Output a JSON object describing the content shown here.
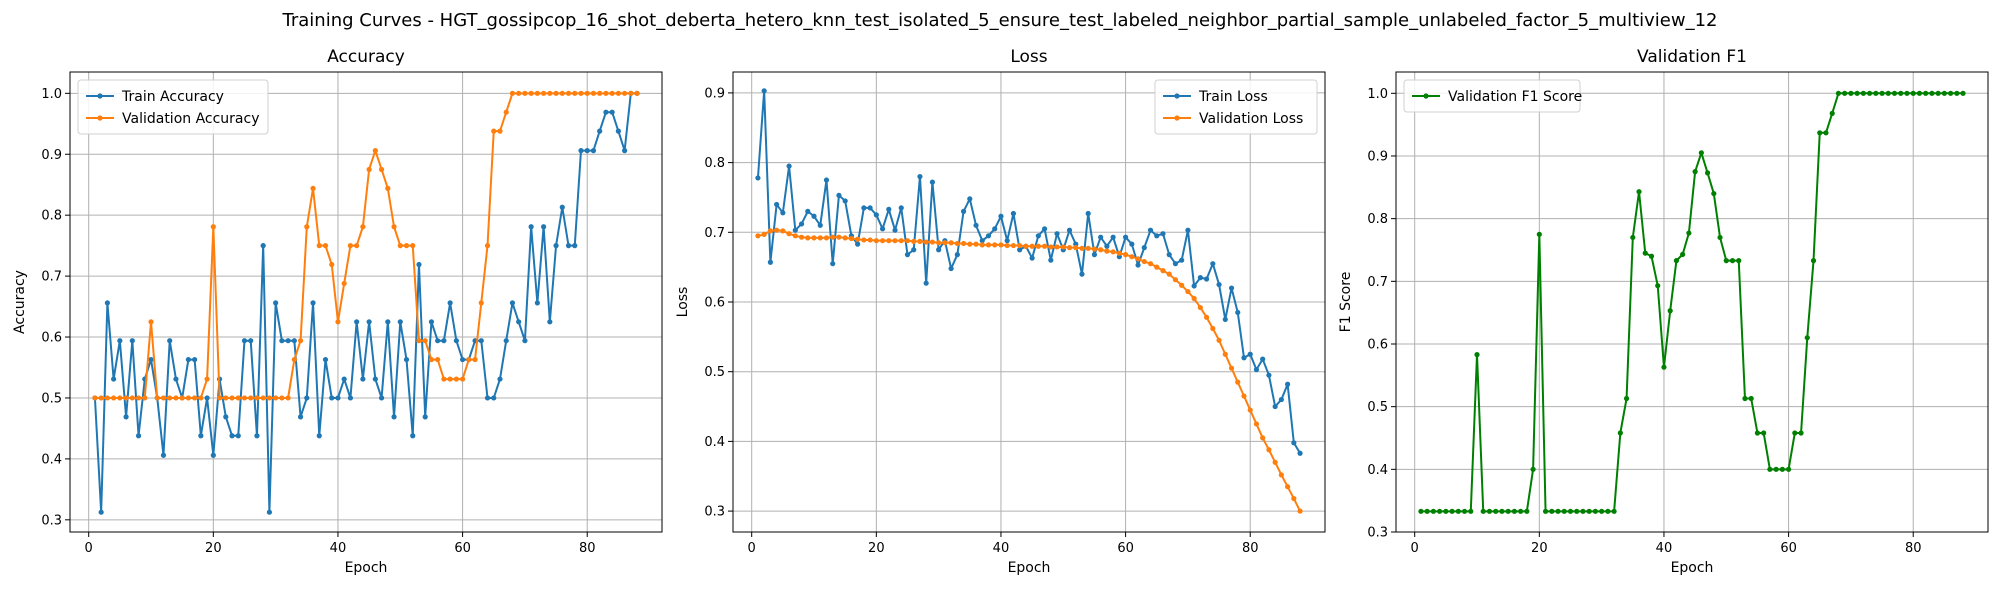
{
  "figure": {
    "suptitle": "Training Curves - HGT_gossipcop_16_shot_deberta_hetero_knn_test_isolated_5_ensure_test_labeled_neighbor_partial_sample_unlabeled_factor_5_multiview_12"
  },
  "colors": {
    "blue": "#1f77b4",
    "orange": "#ff7f0e",
    "green": "#008000",
    "grid": "#b0b0b0"
  },
  "chart_data": [
    {
      "type": "line",
      "title": "Accuracy",
      "xlabel": "Epoch",
      "ylabel": "Accuracy",
      "xlim": [
        -3,
        92
      ],
      "ylim": [
        0.28,
        1.035
      ],
      "xticks": [
        0,
        20,
        40,
        60,
        80
      ],
      "yticks": [
        0.3,
        0.4,
        0.5,
        0.6,
        0.7,
        0.8,
        0.9,
        1.0
      ],
      "ytick_labels": [
        "0.3",
        "0.4",
        "0.5",
        "0.6",
        "0.7",
        "0.8",
        "0.9",
        "1.0"
      ],
      "grid": true,
      "legend_position": "upper-left",
      "series": [
        {
          "name": "Train Accuracy",
          "color": "#1f77b4",
          "x_start": 1,
          "values": [
            0.5,
            0.3125,
            0.656,
            0.531,
            0.594,
            0.469,
            0.594,
            0.438,
            0.531,
            0.563,
            0.5,
            0.406,
            0.594,
            0.531,
            0.5,
            0.563,
            0.563,
            0.438,
            0.5,
            0.406,
            0.531,
            0.469,
            0.438,
            0.438,
            0.594,
            0.594,
            0.438,
            0.75,
            0.3125,
            0.656,
            0.594,
            0.594,
            0.594,
            0.469,
            0.5,
            0.656,
            0.438,
            0.563,
            0.5,
            0.5,
            0.531,
            0.5,
            0.625,
            0.531,
            0.625,
            0.531,
            0.5,
            0.625,
            0.469,
            0.625,
            0.563,
            0.438,
            0.719,
            0.469,
            0.625,
            0.594,
            0.594,
            0.656,
            0.594,
            0.563,
            0.563,
            0.594,
            0.594,
            0.5,
            0.5,
            0.531,
            0.594,
            0.656,
            0.625,
            0.594,
            0.781,
            0.656,
            0.781,
            0.625,
            0.75,
            0.813,
            0.75,
            0.75,
            0.906,
            0.906,
            0.906,
            0.938,
            0.969,
            0.969,
            0.938,
            0.906,
            1.0,
            1.0
          ]
        },
        {
          "name": "Validation Accuracy",
          "color": "#ff7f0e",
          "x_start": 1,
          "values": [
            0.5,
            0.5,
            0.5,
            0.5,
            0.5,
            0.5,
            0.5,
            0.5,
            0.5,
            0.625,
            0.5,
            0.5,
            0.5,
            0.5,
            0.5,
            0.5,
            0.5,
            0.5,
            0.531,
            0.781,
            0.5,
            0.5,
            0.5,
            0.5,
            0.5,
            0.5,
            0.5,
            0.5,
            0.5,
            0.5,
            0.5,
            0.5,
            0.563,
            0.594,
            0.781,
            0.844,
            0.75,
            0.75,
            0.719,
            0.625,
            0.688,
            0.75,
            0.75,
            0.781,
            0.875,
            0.906,
            0.875,
            0.844,
            0.781,
            0.75,
            0.75,
            0.75,
            0.594,
            0.594,
            0.563,
            0.563,
            0.531,
            0.531,
            0.531,
            0.531,
            0.563,
            0.563,
            0.656,
            0.75,
            0.938,
            0.938,
            0.969,
            1.0,
            1.0,
            1.0,
            1.0,
            1.0,
            1.0,
            1.0,
            1.0,
            1.0,
            1.0,
            1.0,
            1.0,
            1.0,
            1.0,
            1.0,
            1.0,
            1.0,
            1.0,
            1.0,
            1.0,
            1.0
          ]
        }
      ]
    },
    {
      "type": "line",
      "title": "Loss",
      "xlabel": "Epoch",
      "ylabel": "Loss",
      "xlim": [
        -3,
        92
      ],
      "ylim": [
        0.27,
        0.93
      ],
      "xticks": [
        0,
        20,
        40,
        60,
        80
      ],
      "yticks": [
        0.3,
        0.4,
        0.5,
        0.6,
        0.7,
        0.8,
        0.9
      ],
      "ytick_labels": [
        "0.3",
        "0.4",
        "0.5",
        "0.6",
        "0.7",
        "0.8",
        "0.9"
      ],
      "grid": true,
      "legend_position": "upper-right",
      "series": [
        {
          "name": "Train Loss",
          "color": "#1f77b4",
          "x_start": 1,
          "values": [
            0.778,
            0.903,
            0.657,
            0.74,
            0.728,
            0.795,
            0.703,
            0.712,
            0.73,
            0.723,
            0.71,
            0.775,
            0.655,
            0.753,
            0.745,
            0.695,
            0.683,
            0.735,
            0.735,
            0.725,
            0.705,
            0.733,
            0.703,
            0.735,
            0.668,
            0.675,
            0.78,
            0.627,
            0.772,
            0.675,
            0.688,
            0.648,
            0.668,
            0.73,
            0.748,
            0.71,
            0.688,
            0.695,
            0.705,
            0.723,
            0.688,
            0.727,
            0.675,
            0.68,
            0.663,
            0.695,
            0.705,
            0.66,
            0.698,
            0.675,
            0.703,
            0.683,
            0.64,
            0.727,
            0.668,
            0.693,
            0.68,
            0.693,
            0.665,
            0.693,
            0.683,
            0.653,
            0.678,
            0.703,
            0.695,
            0.698,
            0.668,
            0.655,
            0.66,
            0.703,
            0.623,
            0.635,
            0.633,
            0.655,
            0.625,
            0.575,
            0.62,
            0.585,
            0.52,
            0.525,
            0.503,
            0.518,
            0.495,
            0.45,
            0.46,
            0.482,
            0.398,
            0.383
          ]
        },
        {
          "name": "Validation Loss",
          "color": "#ff7f0e",
          "x_start": 1,
          "values": [
            0.695,
            0.697,
            0.702,
            0.703,
            0.702,
            0.698,
            0.695,
            0.693,
            0.692,
            0.692,
            0.692,
            0.692,
            0.693,
            0.693,
            0.692,
            0.691,
            0.69,
            0.689,
            0.689,
            0.688,
            0.688,
            0.688,
            0.688,
            0.688,
            0.688,
            0.687,
            0.687,
            0.686,
            0.686,
            0.685,
            0.685,
            0.685,
            0.684,
            0.684,
            0.683,
            0.683,
            0.682,
            0.682,
            0.682,
            0.682,
            0.681,
            0.681,
            0.681,
            0.68,
            0.68,
            0.68,
            0.68,
            0.679,
            0.679,
            0.679,
            0.678,
            0.678,
            0.677,
            0.677,
            0.676,
            0.675,
            0.673,
            0.672,
            0.67,
            0.668,
            0.665,
            0.662,
            0.658,
            0.655,
            0.65,
            0.645,
            0.64,
            0.632,
            0.624,
            0.615,
            0.605,
            0.592,
            0.578,
            0.562,
            0.545,
            0.525,
            0.505,
            0.485,
            0.465,
            0.445,
            0.425,
            0.405,
            0.388,
            0.37,
            0.352,
            0.335,
            0.318,
            0.3
          ]
        }
      ]
    },
    {
      "type": "line",
      "title": "Validation F1",
      "xlabel": "Epoch",
      "ylabel": "F1 Score",
      "xlim": [
        -3,
        92
      ],
      "ylim": [
        0.3,
        1.034
      ],
      "xticks": [
        0,
        20,
        40,
        60,
        80
      ],
      "yticks": [
        0.3,
        0.4,
        0.5,
        0.6,
        0.7,
        0.8,
        0.9,
        1.0
      ],
      "ytick_labels": [
        "0.3",
        "0.4",
        "0.5",
        "0.6",
        "0.7",
        "0.8",
        "0.9",
        "1.0"
      ],
      "grid": true,
      "legend_position": "upper-left",
      "series": [
        {
          "name": "Validation F1 Score",
          "color": "#008000",
          "x_start": 1,
          "values": [
            0.333,
            0.333,
            0.333,
            0.333,
            0.333,
            0.333,
            0.333,
            0.333,
            0.333,
            0.583,
            0.333,
            0.333,
            0.333,
            0.333,
            0.333,
            0.333,
            0.333,
            0.333,
            0.4,
            0.775,
            0.333,
            0.333,
            0.333,
            0.333,
            0.333,
            0.333,
            0.333,
            0.333,
            0.333,
            0.333,
            0.333,
            0.333,
            0.458,
            0.513,
            0.77,
            0.843,
            0.745,
            0.74,
            0.693,
            0.563,
            0.653,
            0.733,
            0.743,
            0.777,
            0.875,
            0.905,
            0.873,
            0.84,
            0.77,
            0.733,
            0.733,
            0.733,
            0.513,
            0.513,
            0.458,
            0.458,
            0.4,
            0.4,
            0.4,
            0.4,
            0.458,
            0.458,
            0.61,
            0.733,
            0.937,
            0.937,
            0.968,
            1.0,
            1.0,
            1.0,
            1.0,
            1.0,
            1.0,
            1.0,
            1.0,
            1.0,
            1.0,
            1.0,
            1.0,
            1.0,
            1.0,
            1.0,
            1.0,
            1.0,
            1.0,
            1.0,
            1.0,
            1.0
          ]
        }
      ]
    }
  ]
}
